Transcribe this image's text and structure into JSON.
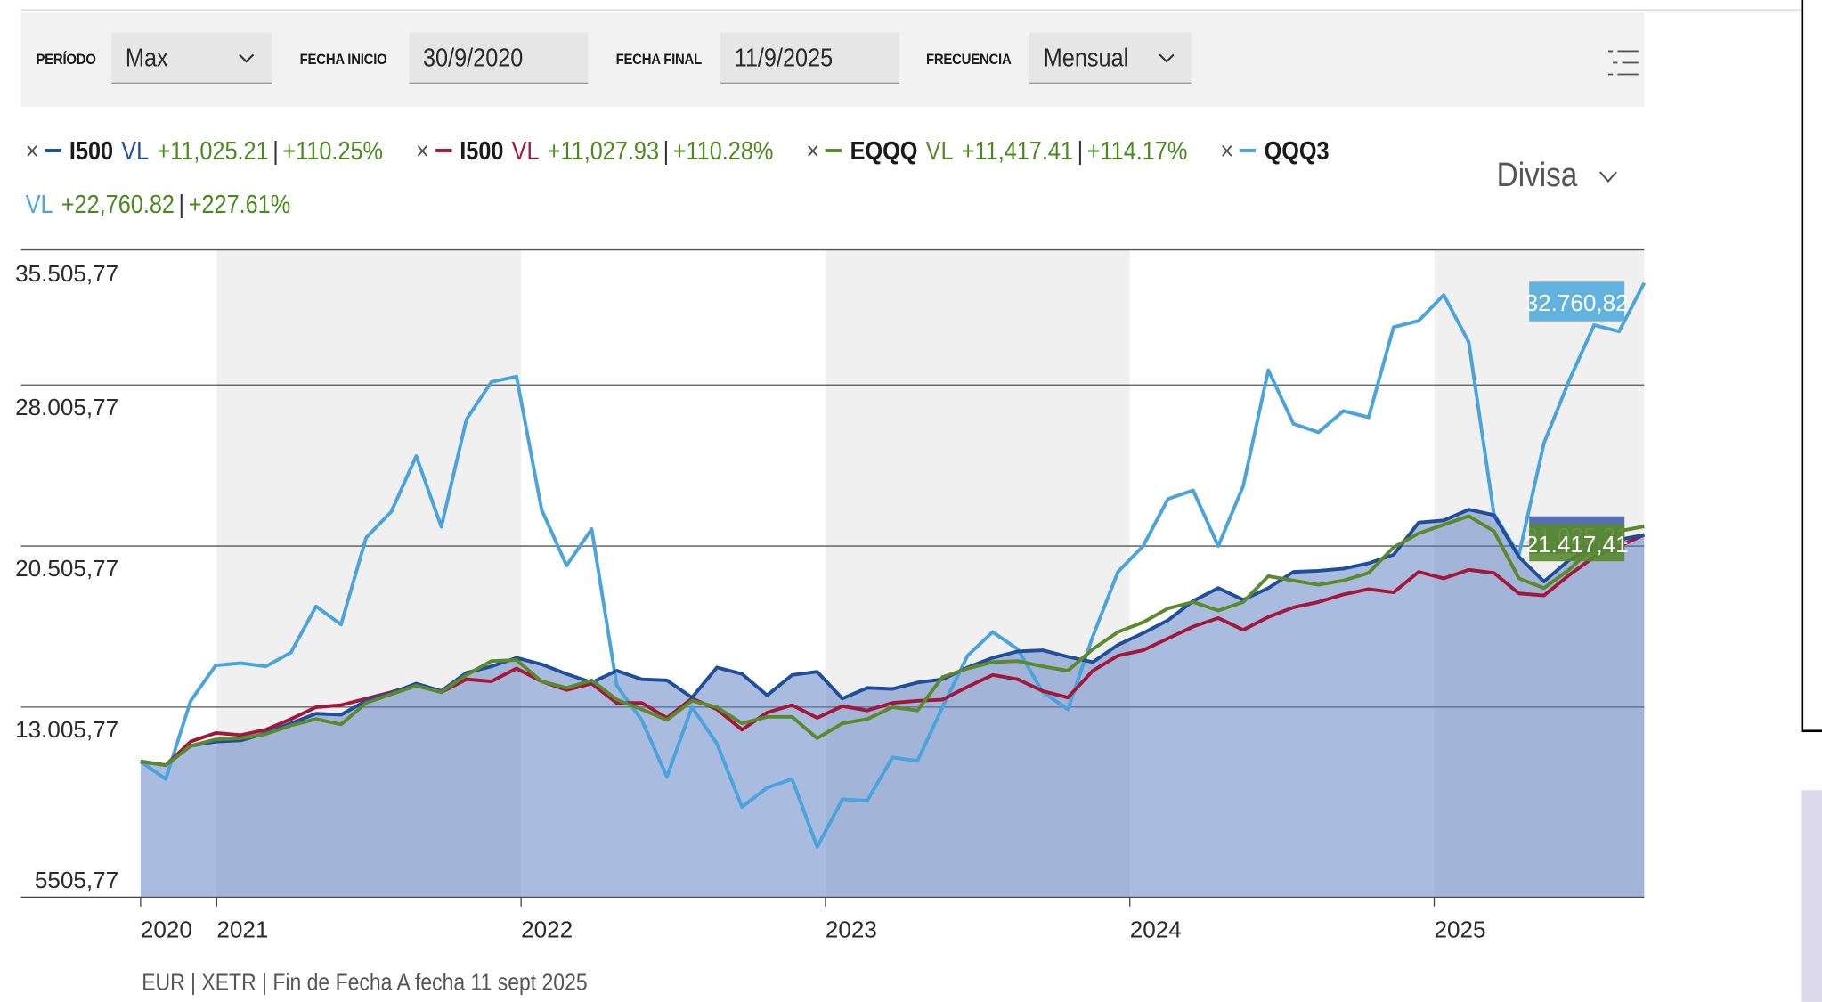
{
  "filters": {
    "periodo_label": "PERÍODO",
    "periodo_value": "Max",
    "fecha_inicio_label": "FECHA INICIO",
    "fecha_inicio_value": "30/9/2020",
    "fecha_final_label": "FECHA FINAL",
    "fecha_final_value": "11/9/2025",
    "frecuencia_label": "FRECUENCIA",
    "frecuencia_value": "Mensual"
  },
  "legend": [
    {
      "close": "×",
      "code": "I500",
      "vl": "VL",
      "change": "+11,025.21",
      "sep": "|",
      "pct": "+110.25%",
      "color": "#1f4e9c"
    },
    {
      "close": "×",
      "code": "I500",
      "vl": "VL",
      "change": "+11,027.93",
      "sep": "|",
      "pct": "+110.28%",
      "color": "#a3183a"
    },
    {
      "close": "×",
      "code": "EQQQ",
      "vl": "VL",
      "change": "+11,417.41",
      "sep": "|",
      "pct": "+114.17%",
      "color": "#5a8a2c"
    },
    {
      "close": "×",
      "code": "QQQ3",
      "vl": "VL",
      "change": "+22,760.82",
      "sep": "|",
      "pct": "+227.61%",
      "color": "#4aa3dc"
    }
  ],
  "divisa_label": "Divisa",
  "footnote": "EUR | XETR | Fin de Fecha A fecha 11 sept 2025",
  "chart_data": {
    "type": "line",
    "x_axis_years": [
      "2020",
      "2021",
      "2022",
      "2023",
      "2024",
      "2025"
    ],
    "y_ticks": [
      "35.505,77",
      "28.005,77",
      "20.505,77",
      "13.005,77",
      "5505,77"
    ],
    "ylim": [
      5505.77,
      35505.77
    ],
    "year_start_positions": [
      2020.75,
      2021.0,
      2022.0,
      2023.0,
      2024.0,
      2025.0
    ],
    "x_start": 2020.75,
    "x_end": 2025.69,
    "series": [
      {
        "name": "I500",
        "color": "#1f4e9c",
        "end_label": "21.025,21",
        "values": [
          10480,
          10300,
          11200,
          11400,
          11450,
          11800,
          12250,
          12700,
          12650,
          13300,
          13650,
          14100,
          13750,
          14600,
          14900,
          15300,
          15000,
          14550,
          14150,
          14700,
          14300,
          14250,
          13450,
          14850,
          14550,
          13550,
          14500,
          14650,
          13400,
          13900,
          13850,
          14150,
          14300,
          14850,
          15300,
          15600,
          15650,
          15350,
          15100,
          15900,
          16450,
          17050,
          17950,
          18550,
          18000,
          18550,
          19300,
          19350,
          19450,
          19700,
          20100,
          21600,
          21700,
          22200,
          21950,
          20000,
          18850,
          19850,
          20500,
          20800,
          21025
        ]
      },
      {
        "name": "I500",
        "color": "#a3183a",
        "end_label": "",
        "values": [
          10480,
          10300,
          11400,
          11800,
          11700,
          11950,
          12450,
          13000,
          13100,
          13400,
          13700,
          14050,
          13700,
          14300,
          14200,
          14800,
          14200,
          13800,
          14100,
          13200,
          13200,
          12500,
          13400,
          12900,
          11950,
          12750,
          13100,
          12500,
          13050,
          12850,
          13200,
          13300,
          13350,
          13950,
          14500,
          14300,
          13750,
          13450,
          14700,
          15400,
          15650,
          16200,
          16750,
          17150,
          16600,
          17200,
          17650,
          17900,
          18250,
          18500,
          18350,
          19300,
          19000,
          19400,
          19250,
          18300,
          18200,
          19150,
          20000,
          20500,
          21028
        ]
      },
      {
        "name": "EQQQ",
        "color": "#5a8a2c",
        "end_label": "21.417,41",
        "values": [
          10480,
          10300,
          11200,
          11500,
          11550,
          11750,
          12150,
          12450,
          12200,
          13200,
          13600,
          14000,
          13700,
          14500,
          15150,
          15200,
          14200,
          13900,
          14250,
          13350,
          12900,
          12400,
          13300,
          13000,
          12250,
          12550,
          12550,
          11550,
          12250,
          12450,
          13000,
          12850,
          14400,
          14800,
          15100,
          15150,
          14900,
          14700,
          15700,
          16500,
          16950,
          17600,
          17900,
          17500,
          17900,
          19100,
          18900,
          18700,
          18900,
          19250,
          20450,
          21100,
          21500,
          21900,
          21200,
          19000,
          18550,
          19400,
          20500,
          21200,
          21417
        ]
      },
      {
        "name": "QQQ3",
        "color": "#4aa3dc",
        "end_label": "32.760,82",
        "values": [
          10480,
          9650,
          13300,
          14950,
          15050,
          14900,
          15550,
          17700,
          16850,
          20900,
          22100,
          24700,
          21400,
          26400,
          28150,
          28400,
          22200,
          19600,
          21300,
          14000,
          12400,
          9750,
          13000,
          11300,
          8350,
          9250,
          9650,
          6490,
          8710,
          8650,
          10660,
          10500,
          13000,
          15400,
          16500,
          15700,
          13700,
          12900,
          16300,
          19300,
          20500,
          22700,
          23100,
          20500,
          23300,
          28700,
          26200,
          25800,
          26800,
          26500,
          30700,
          31000,
          32200,
          30000,
          22000,
          20100,
          25300,
          28200,
          30800,
          30500,
          32761
        ]
      }
    ]
  }
}
